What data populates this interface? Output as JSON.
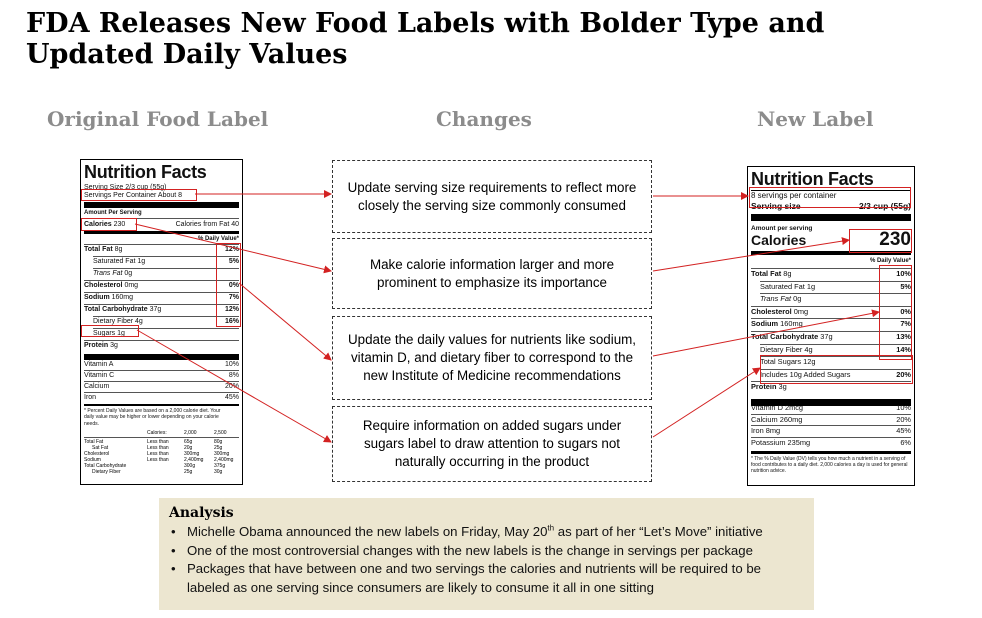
{
  "title": "FDA Releases New Food Labels with Bolder Type and Updated Daily Values",
  "headers": {
    "original": "Original Food Label",
    "changes": "Changes",
    "new": "New Label"
  },
  "changes": [
    "Update serving size requirements to reflect more closely the serving size commonly consumed",
    "Make calorie information larger and more prominent to emphasize its importance",
    "Update the daily values for nutrients like sodium, vitamin D, and dietary fiber to correspond to the new Institute of Medicine recommendations",
    "Require information on added sugars under sugars label to draw attention to sugars not naturally occurring in the product"
  ],
  "original_label": {
    "heading": "Nutrition Facts",
    "serving_size": "Serving Size 2/3 cup (55g)",
    "servings_per_container": "Servings Per Container About 8",
    "amount_per_serving": "Amount Per Serving",
    "calories_label": "Calories",
    "calories_value": "230",
    "calories_from_fat": "Calories from Fat 40",
    "dv_header": "% Daily Value*",
    "rows": [
      {
        "label": "Total Fat",
        "amount": "8g",
        "dv": "12%",
        "bold": true,
        "indent": false,
        "italic": false
      },
      {
        "label": "Saturated Fat",
        "amount": "1g",
        "dv": "5%",
        "bold": false,
        "indent": true,
        "italic": false
      },
      {
        "label": "Trans Fat",
        "amount": "0g",
        "dv": "",
        "bold": false,
        "indent": true,
        "italic": true
      },
      {
        "label": "Cholesterol",
        "amount": "0mg",
        "dv": "0%",
        "bold": true,
        "indent": false,
        "italic": false
      },
      {
        "label": "Sodium",
        "amount": "160mg",
        "dv": "7%",
        "bold": true,
        "indent": false,
        "italic": false
      },
      {
        "label": "Total Carbohydrate",
        "amount": "37g",
        "dv": "12%",
        "bold": true,
        "indent": false,
        "italic": false
      },
      {
        "label": "Dietary Fiber",
        "amount": "4g",
        "dv": "16%",
        "bold": false,
        "indent": true,
        "italic": false
      },
      {
        "label": "Sugars",
        "amount": "1g",
        "dv": "",
        "bold": false,
        "indent": true,
        "italic": false
      },
      {
        "label": "Protein",
        "amount": "3g",
        "dv": "",
        "bold": true,
        "indent": false,
        "italic": false
      }
    ],
    "vitamins": [
      {
        "label": "Vitamin A",
        "dv": "10%"
      },
      {
        "label": "Vitamin C",
        "dv": "8%"
      },
      {
        "label": "Calcium",
        "dv": "20%"
      },
      {
        "label": "Iron",
        "dv": "45%"
      }
    ],
    "footnote": "* Percent Daily Values are based on a 2,000 calorie diet. Your daily value may be higher or lower depending on your calorie needs.",
    "footer_table": {
      "header": [
        "Calories:",
        "2,000",
        "2,500"
      ],
      "rows": [
        [
          "Total Fat",
          "Less than",
          "65g",
          "80g"
        ],
        [
          "Sat Fat",
          "Less than",
          "20g",
          "25g"
        ],
        [
          "Cholesterol",
          "Less than",
          "300mg",
          "300mg"
        ],
        [
          "Sodium",
          "Less than",
          "2,400mg",
          "2,400mg"
        ],
        [
          "Total Carbohydrate",
          "",
          "300g",
          "375g"
        ],
        [
          "Dietary Fiber",
          "",
          "25g",
          "30g"
        ]
      ]
    }
  },
  "new_label": {
    "heading": "Nutrition Facts",
    "servings_per_container": "8 servings per container",
    "serving_size_label": "Serving size",
    "serving_size_value": "2/3 cup (55g)",
    "amount_per_serving": "Amount per serving",
    "calories_label": "Calories",
    "calories_value": "230",
    "dv_header": "% Daily Value*",
    "rows": [
      {
        "label": "Total Fat",
        "amount": "8g",
        "dv": "10%",
        "bold": true,
        "indent": false,
        "italic": false
      },
      {
        "label": "Saturated Fat",
        "amount": "1g",
        "dv": "5%",
        "bold": false,
        "indent": true,
        "italic": false
      },
      {
        "label": "Trans Fat",
        "amount": "0g",
        "dv": "",
        "bold": false,
        "indent": true,
        "italic": true
      },
      {
        "label": "Cholesterol",
        "amount": "0mg",
        "dv": "0%",
        "bold": true,
        "indent": false,
        "italic": false
      },
      {
        "label": "Sodium",
        "amount": "160mg",
        "dv": "7%",
        "bold": true,
        "indent": false,
        "italic": false
      },
      {
        "label": "Total Carbohydrate",
        "amount": "37g",
        "dv": "13%",
        "bold": true,
        "indent": false,
        "italic": false
      },
      {
        "label": "Dietary Fiber",
        "amount": "4g",
        "dv": "14%",
        "bold": false,
        "indent": true,
        "italic": false
      },
      {
        "label": "Total Sugars",
        "amount": "12g",
        "dv": "",
        "bold": false,
        "indent": true,
        "italic": false
      },
      {
        "label": "Includes 10g Added Sugars",
        "amount": "",
        "dv": "20%",
        "bold": false,
        "indent": true,
        "italic": false
      },
      {
        "label": "Protein",
        "amount": "3g",
        "dv": "",
        "bold": true,
        "indent": false,
        "italic": false
      }
    ],
    "vitamins": [
      {
        "label": "Vitamin D",
        "amount": "2mcg",
        "dv": "10%"
      },
      {
        "label": "Calcium",
        "amount": "260mg",
        "dv": "20%"
      },
      {
        "label": "Iron",
        "amount": "8mg",
        "dv": "45%"
      },
      {
        "label": "Potassium",
        "amount": "235mg",
        "dv": "6%"
      }
    ],
    "footnote": "* The % Daily Value (DV) tells you how much a nutrient in a serving of food contributes to a daily diet. 2,000 calories a day is used for general nutrition advice."
  },
  "analysis": {
    "heading": "Analysis",
    "items": [
      "Michelle Obama announced the new labels on Friday, May 20th as part of her “Let’s Move” initiative",
      "One of the most controversial changes with the new labels is the change in servings per package",
      "Packages that have between one and two servings the calories and nutrients will be required to be labeled as one serving since consumers are likely to consume it all in one sitting"
    ]
  },
  "colors": {
    "arrow": "#d32222",
    "header_gray": "#8c8c8c",
    "analysis_bg": "#ece6d0"
  }
}
